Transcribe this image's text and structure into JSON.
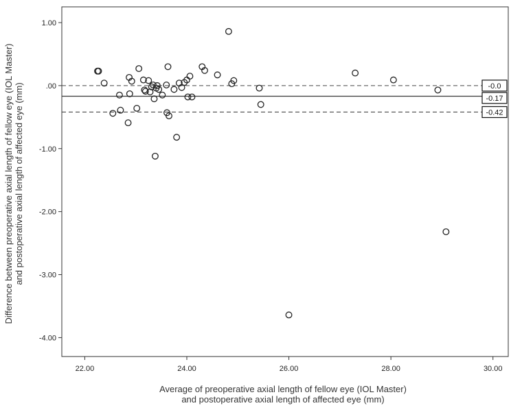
{
  "chart_data": {
    "type": "scatter",
    "title": "",
    "xlabel_lines": [
      "Average of preoperative axial length of fellow eye (IOL Master)",
      "and postoperative axial length of affected eye (mm)"
    ],
    "ylabel_lines": [
      "Difference between preoperative axial length of fellow eye (IOL Master)",
      "and postoperative axial length of affected eye (mm)"
    ],
    "xlim": [
      21.55,
      30.3
    ],
    "ylim": [
      -4.3,
      1.25
    ],
    "xticks": [
      22,
      24,
      26,
      28,
      30
    ],
    "xtick_labels": [
      "22.00",
      "24.00",
      "26.00",
      "28.00",
      "30.00"
    ],
    "yticks": [
      1,
      0,
      -1,
      -2,
      -3,
      -4
    ],
    "ytick_labels": [
      "1.00",
      ".00",
      "-1.00",
      "-2.00",
      "-3.00",
      "-4.00"
    ],
    "reference_lines": [
      {
        "value": 0.0,
        "style": "dashed",
        "label": "-0.0"
      },
      {
        "value": -0.17,
        "style": "solid",
        "label": "-0.17"
      },
      {
        "value": -0.42,
        "style": "dashed",
        "label": "-0.42"
      }
    ],
    "points": [
      {
        "x": 22.25,
        "y": 0.23
      },
      {
        "x": 22.27,
        "y": 0.23
      },
      {
        "x": 22.38,
        "y": 0.04
      },
      {
        "x": 22.55,
        "y": -0.44
      },
      {
        "x": 22.68,
        "y": -0.15
      },
      {
        "x": 22.7,
        "y": -0.39
      },
      {
        "x": 22.85,
        "y": -0.59
      },
      {
        "x": 22.87,
        "y": 0.13
      },
      {
        "x": 22.88,
        "y": -0.13
      },
      {
        "x": 22.92,
        "y": 0.07
      },
      {
        "x": 23.02,
        "y": -0.36
      },
      {
        "x": 23.06,
        "y": 0.27
      },
      {
        "x": 23.15,
        "y": 0.09
      },
      {
        "x": 23.17,
        "y": -0.07
      },
      {
        "x": 23.19,
        "y": -0.09
      },
      {
        "x": 23.25,
        "y": 0.08
      },
      {
        "x": 23.28,
        "y": -0.1
      },
      {
        "x": 23.31,
        "y": -0.02
      },
      {
        "x": 23.34,
        "y": 0.01
      },
      {
        "x": 23.36,
        "y": -0.21
      },
      {
        "x": 23.38,
        "y": -1.12
      },
      {
        "x": 23.4,
        "y": -0.04
      },
      {
        "x": 23.42,
        "y": 0.0
      },
      {
        "x": 23.45,
        "y": -0.06
      },
      {
        "x": 23.52,
        "y": -0.15
      },
      {
        "x": 23.6,
        "y": 0.01
      },
      {
        "x": 23.61,
        "y": -0.43
      },
      {
        "x": 23.63,
        "y": 0.3
      },
      {
        "x": 23.65,
        "y": -0.48
      },
      {
        "x": 23.75,
        "y": -0.06
      },
      {
        "x": 23.8,
        "y": -0.82
      },
      {
        "x": 23.85,
        "y": 0.04
      },
      {
        "x": 23.9,
        "y": -0.03
      },
      {
        "x": 23.95,
        "y": 0.05
      },
      {
        "x": 24.0,
        "y": 0.09
      },
      {
        "x": 24.02,
        "y": -0.18
      },
      {
        "x": 24.06,
        "y": 0.15
      },
      {
        "x": 24.1,
        "y": -0.18
      },
      {
        "x": 24.3,
        "y": 0.3
      },
      {
        "x": 24.35,
        "y": 0.24
      },
      {
        "x": 24.6,
        "y": 0.17
      },
      {
        "x": 24.82,
        "y": 0.86
      },
      {
        "x": 24.88,
        "y": 0.03
      },
      {
        "x": 24.92,
        "y": 0.08
      },
      {
        "x": 25.42,
        "y": -0.04
      },
      {
        "x": 25.45,
        "y": -0.3
      },
      {
        "x": 26.0,
        "y": -3.64
      },
      {
        "x": 27.3,
        "y": 0.2
      },
      {
        "x": 28.05,
        "y": 0.09
      },
      {
        "x": 28.92,
        "y": -0.07
      },
      {
        "x": 29.08,
        "y": -2.32
      }
    ]
  }
}
